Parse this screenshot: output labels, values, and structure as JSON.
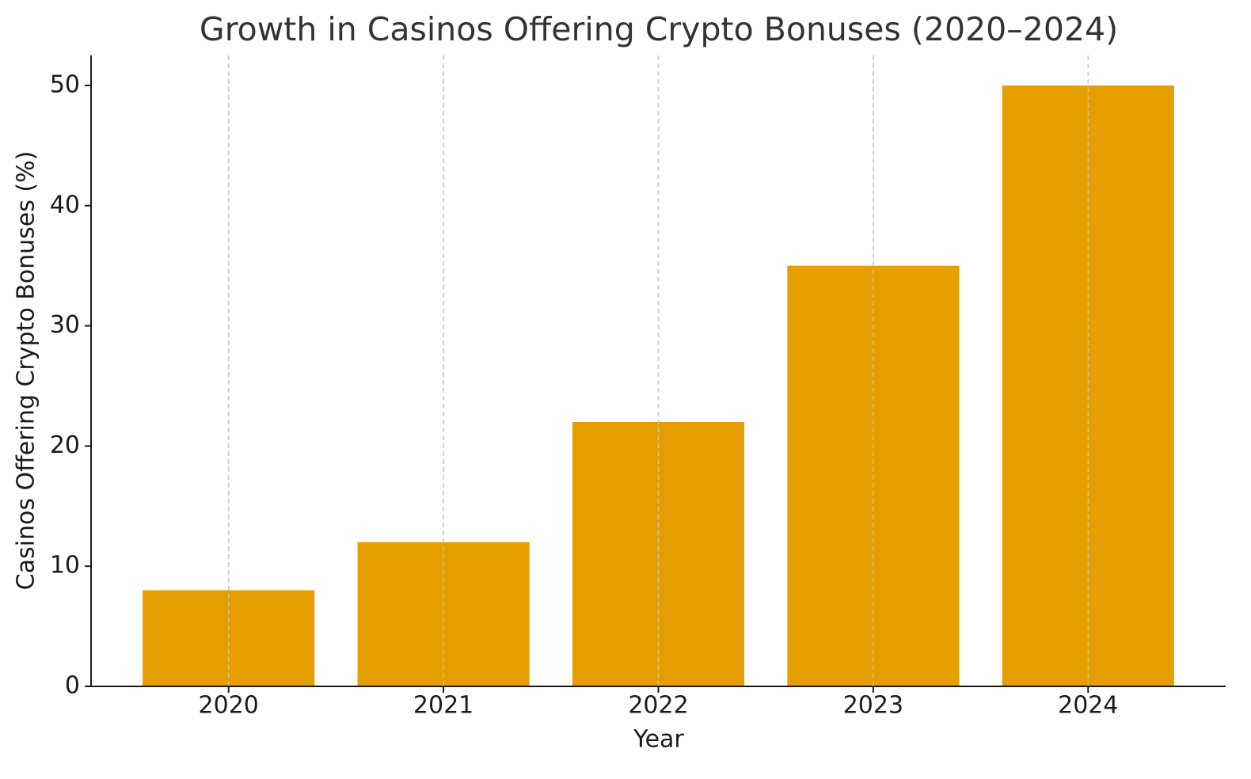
{
  "chart_data": {
    "type": "bar",
    "title": "Growth in Casinos Offering Crypto Bonuses (2020–2024)",
    "x_label": "Year",
    "y_label": "Casinos Offering Crypto Bonuses (%)",
    "categories": [
      "2020",
      "2021",
      "2022",
      "2023",
      "2024"
    ],
    "values": [
      8,
      12,
      22,
      35,
      50
    ],
    "color": "#e69f00",
    "ylim": [
      0,
      52.5
    ],
    "yticks": [
      0,
      10,
      20,
      30,
      40,
      50
    ],
    "grid": "x"
  }
}
